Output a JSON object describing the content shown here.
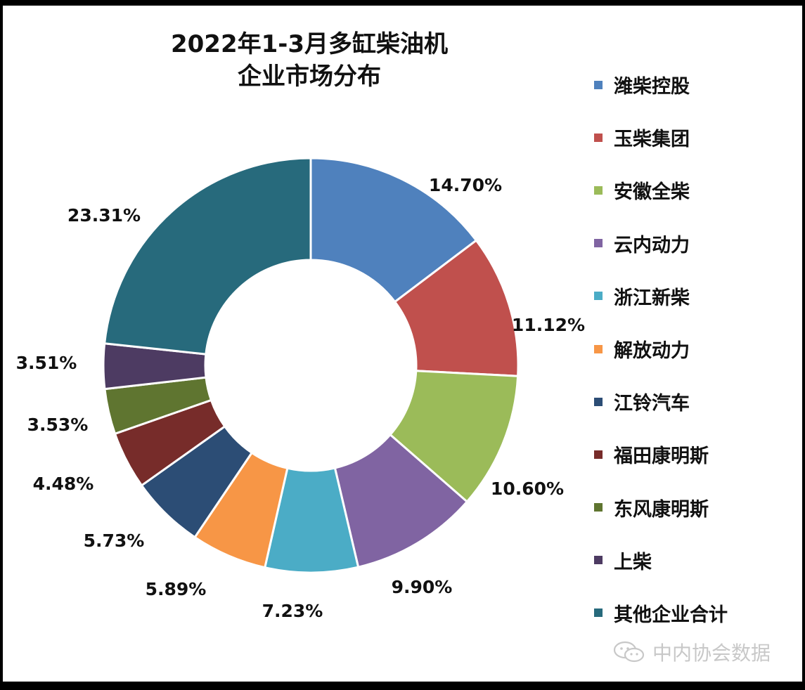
{
  "chart_data": {
    "type": "pie",
    "subtype": "donut",
    "title": [
      "2022年1-3月多缸柴油机",
      "企业市场分布"
    ],
    "legend_position": "right",
    "slices": [
      {
        "label": "潍柴控股",
        "value": 14.7,
        "display": "14.70%",
        "color": "#4f81bd"
      },
      {
        "label": "玉柴集团",
        "value": 11.12,
        "display": "11.12%",
        "color": "#c0504d"
      },
      {
        "label": "安徽全柴",
        "value": 10.6,
        "display": "10.60%",
        "color": "#9bbb59"
      },
      {
        "label": "云内动力",
        "value": 9.9,
        "display": "9.90%",
        "color": "#8064a2"
      },
      {
        "label": "浙江新柴",
        "value": 7.23,
        "display": "7.23%",
        "color": "#4bacc6"
      },
      {
        "label": "解放动力",
        "value": 5.89,
        "display": "5.89%",
        "color": "#f79646"
      },
      {
        "label": "江铃汽车",
        "value": 5.73,
        "display": "5.73%",
        "color": "#2c4d75"
      },
      {
        "label": "福田康明斯",
        "value": 4.48,
        "display": "4.48%",
        "color": "#772c2a"
      },
      {
        "label": "东风康明斯",
        "value": 3.53,
        "display": "3.53%",
        "color": "#5f7530"
      },
      {
        "label": "上柴",
        "value": 3.51,
        "display": "3.51%",
        "color": "#4d3b62"
      },
      {
        "label": "其他企业合计",
        "value": 23.31,
        "display": "23.31%",
        "color": "#276a7c"
      }
    ]
  },
  "watermark": {
    "text": "中内协会数据",
    "icon": "wechat-icon"
  }
}
